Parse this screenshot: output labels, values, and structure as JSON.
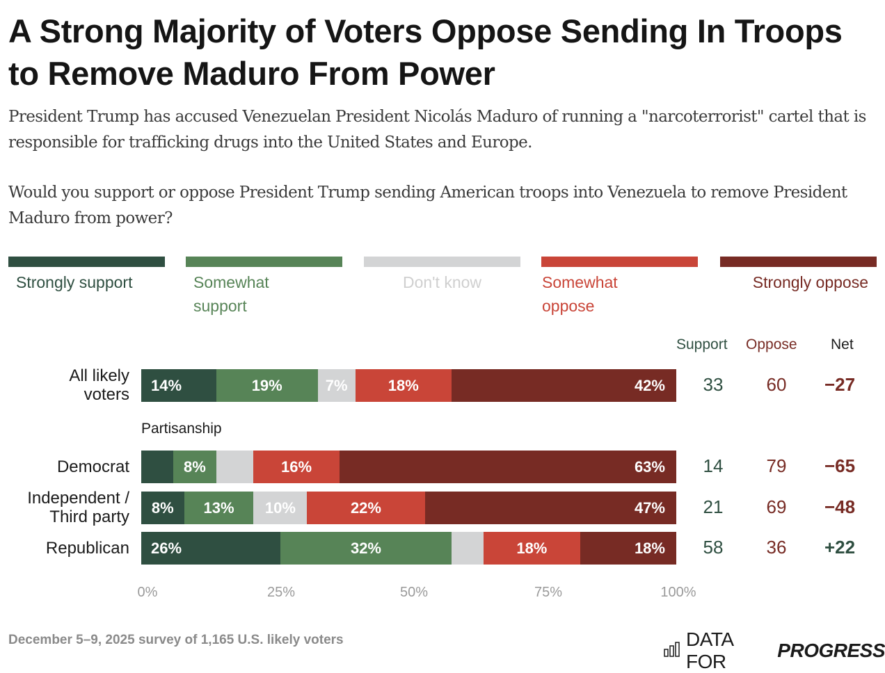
{
  "title": "A Strong Majority of Voters Oppose Sending In Troops to Remove Maduro From Power",
  "subtitle": "President Trump has accused Venezuelan President Nicolás Maduro of running a \"narcoterrorist\" cartel that is responsible for trafficking drugs into the United States and Europe.",
  "question": "Would you support or oppose President Trump sending American troops into Venezuela to remove President Maduro from power?",
  "colors": {
    "strongly_support": "#2f4f41",
    "somewhat_support": "#578457",
    "dont_know": "#d3d4d5",
    "somewhat_oppose": "#c94538",
    "strongly_oppose": "#772b24",
    "dont_know_text": "#cfcfcf",
    "net_negative": "#772b24",
    "net_positive": "#2f4f41"
  },
  "column_headers": {
    "support": "Support",
    "oppose": "Oppose",
    "net": "Net"
  },
  "group_label": "Partisanship",
  "footer": "December 5–9, 2025 survey of 1,165 U.S. likely voters",
  "logo": {
    "light": "DATA FOR",
    "bold": "PROGRESS",
    "icon": "bar-chart-icon"
  },
  "chart_data": {
    "type": "bar",
    "orientation": "horizontal-stacked-100",
    "title": "A Strong Majority of Voters Oppose Sending In Troops to Remove Maduro From Power",
    "xlabel": "",
    "ylabel": "",
    "xlim": [
      0,
      100
    ],
    "x_ticks": [
      "0%",
      "25%",
      "50%",
      "75%",
      "100%"
    ],
    "legend_position": "top",
    "series": [
      {
        "key": "strongly_support",
        "name": "Strongly support"
      },
      {
        "key": "somewhat_support",
        "name": "Somewhat support"
      },
      {
        "key": "dont_know",
        "name": "Don't know"
      },
      {
        "key": "somewhat_oppose",
        "name": "Somewhat oppose"
      },
      {
        "key": "strongly_oppose",
        "name": "Strongly oppose"
      }
    ],
    "rows": [
      {
        "label": "All likely voters",
        "label_lines": [
          "All likely",
          "voters"
        ],
        "values": [
          14,
          19,
          7,
          18,
          42
        ],
        "labels": [
          "14%",
          "19%",
          "7%",
          "18%",
          "42%"
        ],
        "support": "33",
        "oppose": "60",
        "net": "−27",
        "net_sign": "negative"
      },
      {
        "label": "Democrat",
        "label_lines": [
          "Democrat"
        ],
        "values": [
          6,
          8,
          7,
          16,
          63
        ],
        "labels": [
          "",
          "8%",
          "",
          "16%",
          "63%"
        ],
        "support": "14",
        "oppose": "79",
        "net": "−65",
        "net_sign": "negative"
      },
      {
        "label": "Independent / Third party",
        "label_lines": [
          "Independent /",
          "Third party"
        ],
        "values": [
          8,
          13,
          10,
          22,
          47
        ],
        "labels": [
          "8%",
          "13%",
          "10%",
          "22%",
          "47%"
        ],
        "support": "21",
        "oppose": "69",
        "net": "−48",
        "net_sign": "negative"
      },
      {
        "label": "Republican",
        "label_lines": [
          "Republican"
        ],
        "values": [
          26,
          32,
          6,
          18,
          18
        ],
        "labels": [
          "26%",
          "32%",
          "",
          "18%",
          "18%"
        ],
        "support": "58",
        "oppose": "36",
        "net": "+22",
        "net_sign": "positive"
      }
    ]
  }
}
